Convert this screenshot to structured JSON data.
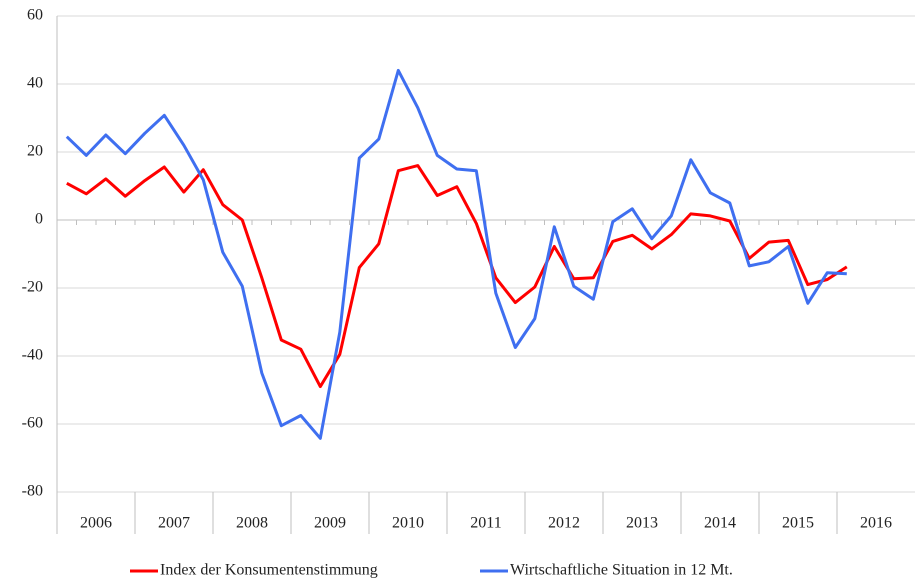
{
  "chart_data": {
    "type": "line",
    "categories": [
      "2006",
      null,
      null,
      null,
      "2007",
      null,
      null,
      null,
      "2008",
      null,
      null,
      null,
      "2009",
      null,
      null,
      null,
      "2010",
      null,
      null,
      null,
      "2011",
      null,
      null,
      null,
      "2012",
      null,
      null,
      null,
      "2013",
      null,
      null,
      null,
      "2014",
      null,
      null,
      null,
      "2015",
      null,
      null,
      null,
      "2016",
      null,
      null,
      null
    ],
    "series": [
      {
        "name": "Index der Konsumentenstimmung",
        "color": "#ff0000",
        "values": [
          10.8,
          7.7,
          12.1,
          7,
          11.6,
          15.6,
          8.2,
          14.8,
          4.5,
          0,
          -17,
          -35.3,
          -38,
          -49,
          -39.5,
          -14,
          -7,
          14.5,
          16,
          7.2,
          9.8,
          -1,
          -17,
          -24.3,
          -19.7,
          -7.8,
          -17.3,
          -17,
          -6.3,
          -4.5,
          -8.5,
          -4.3,
          1.8,
          1.2,
          -0.3,
          -11.3,
          -6.5,
          -6,
          -19,
          -17.5,
          -13.8,
          null,
          null,
          null
        ]
      },
      {
        "name": "Wirtschaftliche Situation in 12 Mt.",
        "color": "#3f6ff0",
        "values": [
          24.5,
          19,
          25,
          19.5,
          25.5,
          30.8,
          22,
          11.8,
          -9.5,
          -19.5,
          -45,
          -60.5,
          -57.5,
          -64.2,
          -33,
          18.2,
          23.8,
          44,
          33,
          19,
          15,
          14.5,
          -21.5,
          -37.5,
          -29,
          -2,
          -19.5,
          -23.3,
          -0.5,
          3.3,
          -5.5,
          1.2,
          17.7,
          8,
          5,
          -13.5,
          -12.3,
          -7.8,
          -24.5,
          -15.5,
          -15.8,
          null,
          null,
          null
        ]
      }
    ],
    "ylim": [
      -80,
      60
    ],
    "yticks": [
      -80,
      -60,
      -40,
      -20,
      0,
      20,
      40,
      60
    ],
    "grid": true,
    "legend": "bottom"
  }
}
